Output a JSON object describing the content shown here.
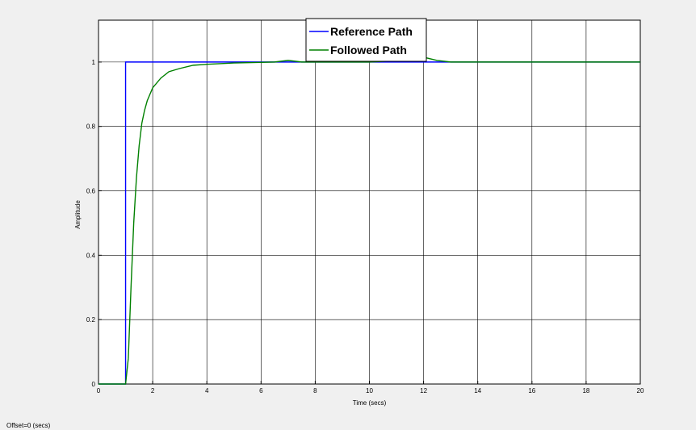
{
  "chart_data": {
    "type": "line",
    "xlabel": "Time (secs)",
    "ylabel": "Amplitude",
    "xlim": [
      0,
      20
    ],
    "ylim": [
      0,
      1.13
    ],
    "grid": true,
    "legend_position": "top-center",
    "x_ticks": [
      0,
      2,
      4,
      6,
      8,
      10,
      12,
      14,
      16,
      18,
      20
    ],
    "y_ticks": [
      0,
      0.2,
      0.4,
      0.6,
      0.8,
      1
    ],
    "series": [
      {
        "name": "Reference Path",
        "color": "#0000ff",
        "points": [
          [
            0,
            0
          ],
          [
            1,
            0
          ],
          [
            1,
            1
          ],
          [
            20,
            1
          ]
        ]
      },
      {
        "name": "Followed Path",
        "color": "#008000",
        "points": [
          [
            0,
            0
          ],
          [
            1.0,
            0
          ],
          [
            1.1,
            0.08
          ],
          [
            1.2,
            0.3
          ],
          [
            1.3,
            0.5
          ],
          [
            1.4,
            0.64
          ],
          [
            1.5,
            0.74
          ],
          [
            1.6,
            0.81
          ],
          [
            1.7,
            0.85
          ],
          [
            1.8,
            0.88
          ],
          [
            2.0,
            0.92
          ],
          [
            2.3,
            0.95
          ],
          [
            2.6,
            0.97
          ],
          [
            3.0,
            0.98
          ],
          [
            3.5,
            0.99
          ],
          [
            4.0,
            0.993
          ],
          [
            5.0,
            0.997
          ],
          [
            6.0,
            0.999
          ],
          [
            6.5,
            1.0
          ],
          [
            7.0,
            1.005
          ],
          [
            7.5,
            1.0
          ],
          [
            8.0,
            1.0
          ],
          [
            10.0,
            1.0
          ],
          [
            10.5,
            1.002
          ],
          [
            11.0,
            1.005
          ],
          [
            11.5,
            1.008
          ],
          [
            12.0,
            1.015
          ],
          [
            12.5,
            1.005
          ],
          [
            13.0,
            1.0
          ],
          [
            20,
            1.0
          ]
        ]
      }
    ]
  },
  "footer": {
    "offset_text": "Offset=0 (secs)"
  }
}
